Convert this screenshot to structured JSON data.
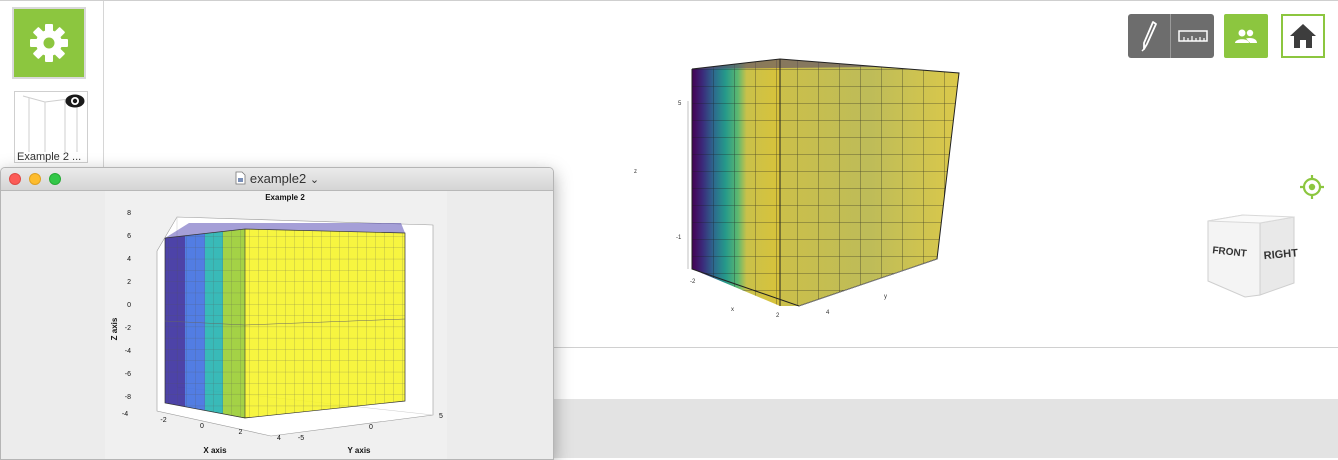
{
  "sidebar": {
    "settings_icon": "gear-icon",
    "thumbnail_label": "Example 2 ...",
    "thumbnail_icon": "eye-icon"
  },
  "toolbar": {
    "draw_icon": "pen-icon",
    "measure_icon": "ruler-icon",
    "users_icon": "users-icon",
    "home_icon": "home-icon",
    "locate_icon": "locate-icon"
  },
  "viewcube": {
    "front": "FRONT",
    "right": "RIGHT"
  },
  "viewport_plot": {
    "tick_z_top": "5",
    "tick_z_mid": "-1",
    "label_z": "z",
    "tick_x_left": "-2",
    "tick_x_mid": "2",
    "label_x": "x",
    "tick_y_mid": "4",
    "label_y": "y"
  },
  "window": {
    "title": "example2",
    "chevron": "⌄"
  },
  "colors": {
    "accent": "#8cc63f",
    "tool_gray": "#6d6d6d",
    "viridis_dark": "#440154",
    "viridis_yellow": "#fde725"
  },
  "chart_data": {
    "type": "volume-slice",
    "title": "Example 2",
    "xlabel": "X axis",
    "ylabel": "Y axis",
    "zlabel": "Z axis",
    "xlim": [
      -4,
      4
    ],
    "ylim": [
      -5,
      5
    ],
    "zlim": [
      -8,
      8
    ],
    "x_ticks": [
      "-4",
      "-2",
      "0",
      "2",
      "4"
    ],
    "y_ticks": [
      "-5",
      "0",
      "5"
    ],
    "z_ticks": [
      "8",
      "6",
      "4",
      "2",
      "0",
      "-2",
      "-4",
      "-6",
      "-8"
    ],
    "slice_colors": [
      "#3a2f9e",
      "#3f6fe0",
      "#24b3b0",
      "#9acd32",
      "#f6f31f"
    ]
  }
}
